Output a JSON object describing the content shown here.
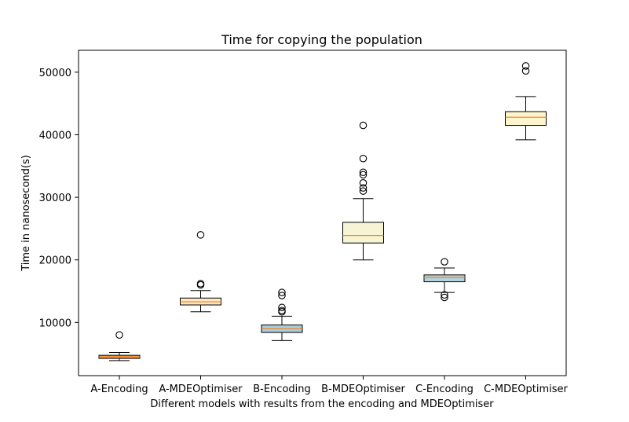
{
  "chart_data": {
    "type": "boxplot",
    "title": "Time for copying the population",
    "xlabel": "Different models with results from the encoding and MDEOptimiser",
    "ylabel": "Time in nanosecond(s)",
    "ylim": [
      1500,
      53500
    ],
    "yticks": [
      10000,
      20000,
      30000,
      40000,
      50000
    ],
    "grid": false,
    "median_color": "#ff7f0e",
    "categories": [
      "A-Encoding",
      "A-MDEOptimiser",
      "B-Encoding",
      "B-MDEOptimiser",
      "C-Encoding",
      "C-MDEOptimiser"
    ],
    "boxes": [
      {
        "name": "A-Encoding",
        "whisker_low": 3900,
        "q1": 4250,
        "median": 4500,
        "q3": 4750,
        "whisker_high": 5200,
        "outliers": [
          8000
        ],
        "fill": "#f4a460"
      },
      {
        "name": "A-MDEOptimiser",
        "whisker_low": 11700,
        "q1": 12800,
        "median": 13300,
        "q3": 13900,
        "whisker_high": 15100,
        "outliers": [
          16000,
          16200,
          24000
        ],
        "fill": "#fde9c8"
      },
      {
        "name": "B-Encoding",
        "whisker_low": 7100,
        "q1": 8400,
        "median": 9000,
        "q3": 9600,
        "whisker_high": 11000,
        "outliers": [
          11700,
          11900,
          12400,
          14300,
          14800
        ],
        "fill": "#a8cde0"
      },
      {
        "name": "B-MDEOptimiser",
        "whisker_low": 20000,
        "q1": 22700,
        "median": 23900,
        "q3": 26000,
        "whisker_high": 29800,
        "outliers": [
          31000,
          31500,
          32300,
          33600,
          34000,
          36200,
          41500
        ],
        "fill": "#f5f5d5"
      },
      {
        "name": "C-Encoding",
        "whisker_low": 14800,
        "q1": 16500,
        "median": 17200,
        "q3": 17600,
        "whisker_high": 18700,
        "outliers": [
          14000,
          14400,
          19700
        ],
        "fill": "#b4d3e0"
      },
      {
        "name": "C-MDEOptimiser",
        "whisker_low": 39200,
        "q1": 41500,
        "median": 42800,
        "q3": 43700,
        "whisker_high": 46100,
        "outliers": [
          50200,
          51000
        ],
        "fill": "#fdf5d0"
      }
    ]
  }
}
